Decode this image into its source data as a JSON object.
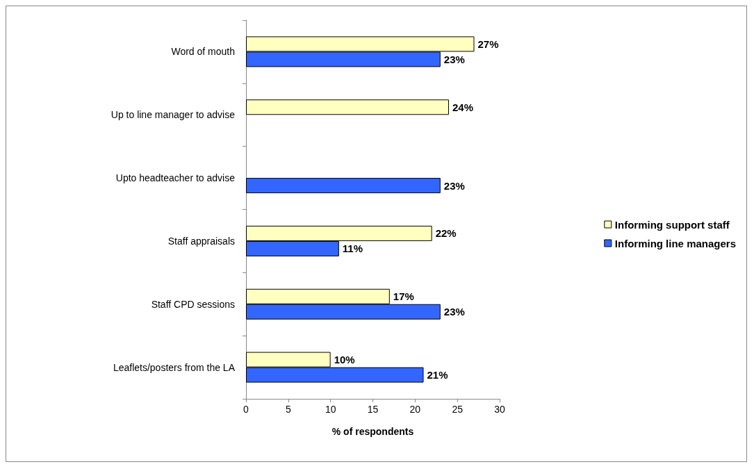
{
  "chart_data": {
    "type": "bar",
    "orientation": "horizontal",
    "xlabel": "% of respondents",
    "categories": [
      "Word of mouth",
      "Up to line manager to advise",
      "Upto headteacher to advise",
      "Staff appraisals",
      "Staff CPD sessions",
      "Leaflets/posters from the LA"
    ],
    "series": [
      {
        "name": "Informing support staff",
        "color": "#ffffc0",
        "values": [
          27,
          24,
          null,
          22,
          17,
          10
        ],
        "value_labels": [
          "27%",
          "24%",
          null,
          "22%",
          "17%",
          "10%"
        ]
      },
      {
        "name": "Informing line managers",
        "color": "#3366ff",
        "values": [
          23,
          null,
          23,
          11,
          23,
          21
        ],
        "value_labels": [
          "23%",
          null,
          "23%",
          "11%",
          "23%",
          "21%"
        ]
      }
    ],
    "xlim": [
      0,
      30
    ],
    "xticks": [
      0,
      5,
      10,
      15,
      20,
      25,
      30
    ],
    "grid": false,
    "legend": "right"
  }
}
